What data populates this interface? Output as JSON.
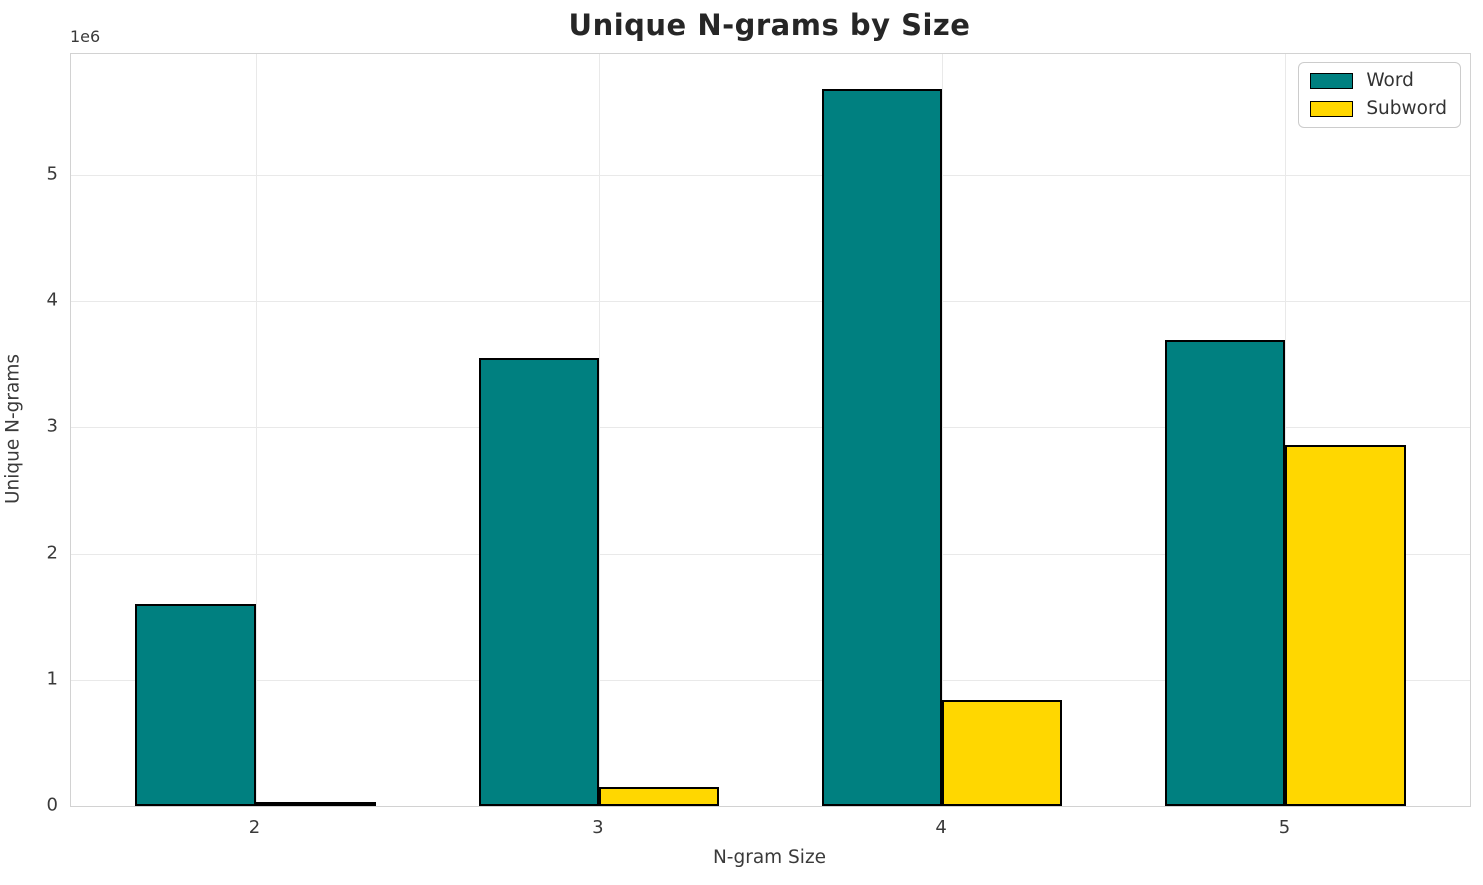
{
  "chart_data": {
    "type": "bar",
    "title": "Unique N-grams by Size",
    "xlabel": "N-gram Size",
    "ylabel": "Unique N-grams",
    "y_offset_label": "1e6",
    "categories": [
      "2",
      "3",
      "4",
      "5"
    ],
    "x_positions": [
      2,
      3,
      4,
      5
    ],
    "series": [
      {
        "name": "Word",
        "color": "#008080",
        "values": [
          1600000,
          3550000,
          5680000,
          3690000
        ]
      },
      {
        "name": "Subword",
        "color": "#FFD700",
        "values": [
          30000,
          150000,
          840000,
          2860000
        ]
      }
    ],
    "bar_width_units": 0.35,
    "bar_edge_color": "#000000",
    "xlim": [
      1.4625,
      5.5375
    ],
    "ylim": [
      0,
      5960000
    ],
    "yticks": [
      0,
      1000000,
      2000000,
      3000000,
      4000000,
      5000000
    ],
    "ytick_labels": [
      "0",
      "1",
      "2",
      "3",
      "4",
      "5"
    ],
    "grid": true,
    "legend_position": "upper right"
  },
  "styles": {
    "grid_color": "#e9e9e9",
    "spine_color": "#d2d2d2",
    "tick_text_color": "#3a3a3a",
    "title_color": "#262626",
    "background": "#ffffff"
  }
}
